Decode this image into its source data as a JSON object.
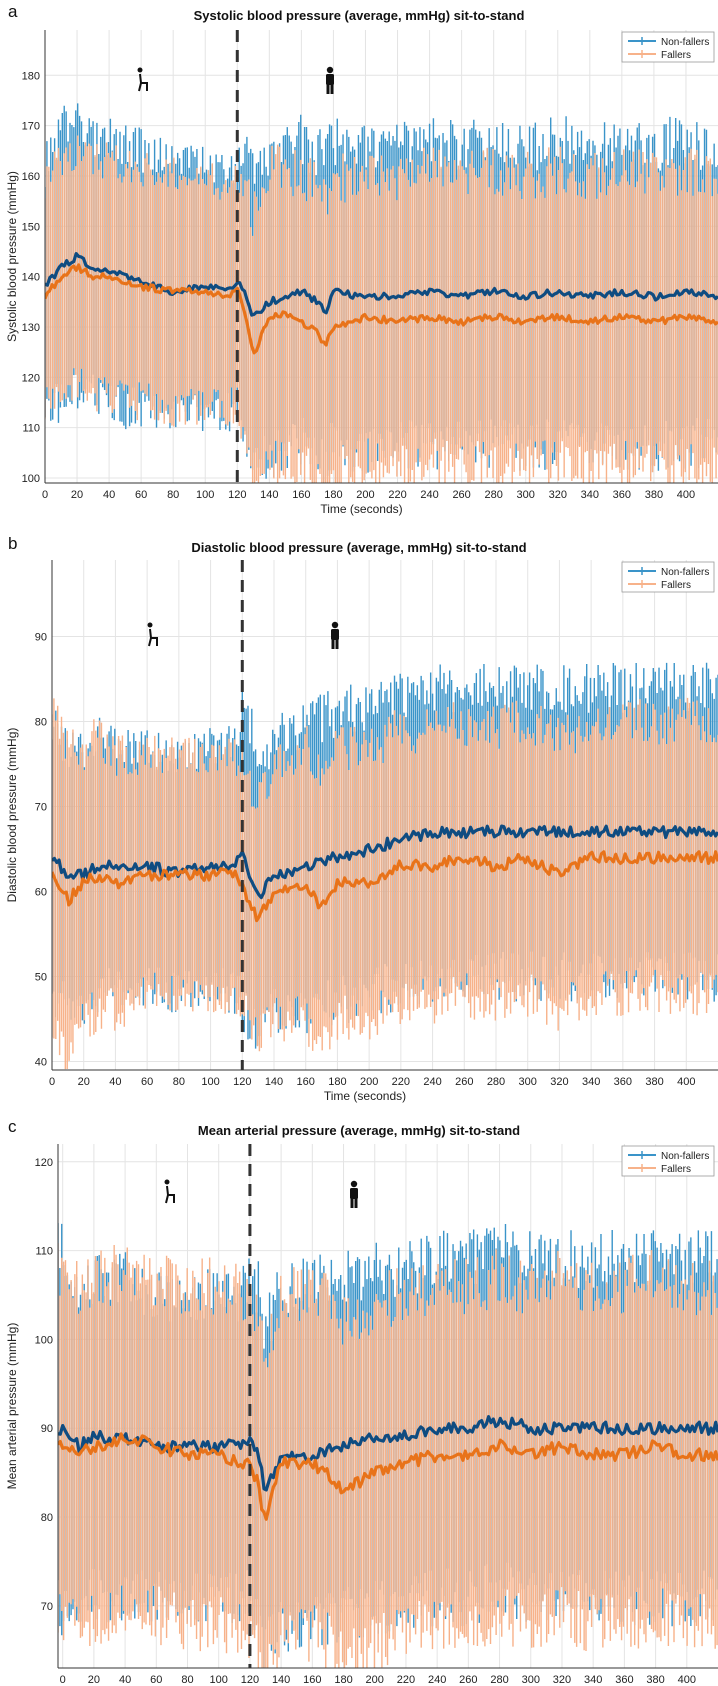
{
  "panels": [
    {
      "letter": "a",
      "chart_data": {
        "type": "line",
        "title": "Systolic blood pressure (average, mmHg) sit-to-stand",
        "xlabel": "Time (seconds)",
        "ylabel": "Systolic blood pressure (mmHg)",
        "xlim": [
          0,
          420
        ],
        "ylim": [
          99,
          189
        ],
        "xticks": [
          0,
          20,
          40,
          60,
          80,
          100,
          120,
          140,
          160,
          180,
          200,
          220,
          240,
          260,
          280,
          300,
          320,
          340,
          360,
          380,
          400
        ],
        "yticks": [
          100,
          110,
          120,
          130,
          140,
          150,
          160,
          170,
          180
        ],
        "grid": true,
        "legend_position": "top-right",
        "stand_time": 120,
        "series": [
          {
            "name": "Non-fallers",
            "color": "#0f4c81",
            "band_color": "#3a94c9",
            "x": [
              0,
              10,
              20,
              30,
              40,
              60,
              80,
              100,
              115,
              120,
              125,
              130,
              140,
              150,
              160,
              170,
              175,
              180,
              200,
              220,
              240,
              260,
              280,
              300,
              320,
              340,
              360,
              380,
              400,
              420
            ],
            "values": [
              138,
              142,
              144,
              142,
              141,
              139,
              137,
              138,
              137,
              139,
              137,
              132,
              135,
              136,
              137,
              135,
              133,
              137,
              136,
              136,
              137,
              136,
              137,
              136,
              137,
              136,
              137,
              136,
              137,
              136
            ],
            "sd": [
              24,
              27,
              27,
              26,
              26,
              26,
              25,
              25,
              24,
              23,
              28,
              28,
              30,
              30,
              30,
              30,
              30,
              30,
              30,
              30,
              30,
              30,
              30,
              30,
              30,
              30,
              30,
              30,
              30,
              29
            ]
          },
          {
            "name": "Fallers",
            "color": "#e8731a",
            "band_color": "#f7b28a",
            "x": [
              0,
              10,
              20,
              30,
              40,
              60,
              80,
              100,
              115,
              120,
              125,
              130,
              135,
              140,
              150,
              160,
              170,
              175,
              180,
              200,
              220,
              240,
              260,
              280,
              300,
              320,
              340,
              360,
              380,
              400,
              420
            ],
            "values": [
              136,
              140,
              142,
              140,
              140,
              138,
              137,
              137,
              136,
              137,
              133,
              124,
              128,
              132,
              133,
              131,
              129,
              126,
              130,
              132,
              131,
              132,
              131,
              132,
              131,
              132,
              131,
              132,
              131,
              132,
              131
            ],
            "sd": [
              22,
              23,
              23,
              23,
              23,
              23,
              23,
              23,
              22,
              22,
              25,
              28,
              28,
              29,
              29,
              29,
              29,
              29,
              29,
              29,
              29,
              29,
              29,
              29,
              29,
              29,
              29,
              29,
              29,
              29,
              29
            ]
          }
        ]
      }
    },
    {
      "letter": "b",
      "chart_data": {
        "type": "line",
        "title": "Diastolic blood pressure (average, mmHg) sit-to-stand",
        "xlabel": "Time (seconds)",
        "ylabel": "Diastolic blood pressure (mmHg)",
        "xlim": [
          0,
          420
        ],
        "ylim": [
          39,
          99
        ],
        "xticks": [
          0,
          20,
          40,
          60,
          80,
          100,
          120,
          140,
          160,
          180,
          200,
          220,
          240,
          260,
          280,
          300,
          320,
          340,
          360,
          380,
          400
        ],
        "yticks": [
          40,
          50,
          60,
          70,
          80,
          90
        ],
        "grid": true,
        "legend_position": "top-right",
        "stand_time": 120,
        "series": [
          {
            "name": "Non-fallers",
            "color": "#0f4c81",
            "band_color": "#3a94c9",
            "x": [
              0,
              10,
              20,
              30,
              40,
              60,
              80,
              100,
              115,
              120,
              125,
              130,
              140,
              160,
              180,
              200,
              220,
              240,
              260,
              280,
              300,
              320,
              340,
              360,
              380,
              400,
              420
            ],
            "values": [
              64,
              62,
              62,
              63,
              63,
              63,
              62,
              63,
              63,
              64,
              62,
              59,
              62,
              63,
              64,
              65,
              66,
              67,
              67,
              67,
              67,
              67,
              67,
              67,
              67,
              67,
              67
            ],
            "sd": [
              16,
              15,
              15,
              15,
              14,
              14,
              14,
              14,
              15,
              17,
              18,
              16,
              16,
              17,
              17,
              17,
              17,
              17,
              17,
              17,
              17,
              17,
              17,
              17,
              17,
              17,
              17
            ]
          },
          {
            "name": "Fallers",
            "color": "#e8731a",
            "band_color": "#f7b28a",
            "x": [
              0,
              10,
              20,
              30,
              40,
              60,
              80,
              100,
              115,
              120,
              125,
              130,
              140,
              160,
              170,
              180,
              200,
              220,
              240,
              260,
              280,
              300,
              320,
              340,
              360,
              380,
              400,
              420
            ],
            "values": [
              62,
              59,
              61,
              62,
              61,
              62,
              62,
              62,
              62,
              61,
              58,
              57,
              60,
              61,
              58,
              61,
              61,
              63,
              63,
              64,
              63,
              64,
              62,
              64,
              64,
              64,
              64,
              64
            ],
            "sd": [
              20,
              18,
              16,
              16,
              15,
              14,
              14,
              14,
              14,
              14,
              14,
              14,
              15,
              16,
              16,
              16,
              16,
              16,
              16,
              16,
              16,
              16,
              16,
              16,
              16,
              16,
              16,
              16
            ]
          }
        ]
      }
    },
    {
      "letter": "c",
      "chart_data": {
        "type": "line",
        "title": "Mean arterial pressure (average, mmHg) sit-to-stand",
        "xlabel": "Time (seconds)",
        "ylabel": "Mean arterial pressure (mmHg)",
        "xlim": [
          -3,
          420
        ],
        "ylim": [
          63,
          122
        ],
        "xticks": [
          0,
          20,
          40,
          60,
          80,
          100,
          120,
          140,
          160,
          180,
          200,
          220,
          240,
          260,
          280,
          300,
          320,
          340,
          360,
          380,
          400
        ],
        "yticks": [
          70,
          80,
          90,
          100,
          110,
          120
        ],
        "grid": true,
        "legend_position": "top-right",
        "stand_time": 120,
        "series": [
          {
            "name": "Non-fallers",
            "color": "#0f4c81",
            "band_color": "#3a94c9",
            "x": [
              0,
              10,
              20,
              30,
              40,
              60,
              80,
              100,
              115,
              120,
              125,
              130,
              140,
              160,
              180,
              200,
              220,
              240,
              260,
              280,
              300,
              320,
              340,
              360,
              380,
              400,
              420
            ],
            "values": [
              90,
              88,
              89,
              89,
              89,
              88,
              88,
              88,
              88,
              89,
              87,
              83,
              87,
              87,
              88,
              89,
              89,
              90,
              90,
              91,
              90,
              90,
              90,
              90,
              90,
              90,
              90
            ],
            "sd": [
              20,
              18,
              18,
              18,
              18,
              17,
              17,
              17,
              17,
              18,
              19,
              18,
              19,
              19,
              19,
              19,
              19,
              19,
              19,
              19,
              19,
              19,
              19,
              19,
              19,
              19,
              19
            ]
          },
          {
            "name": "Fallers",
            "color": "#e8731a",
            "band_color": "#f7b28a",
            "x": [
              0,
              10,
              20,
              30,
              40,
              60,
              80,
              100,
              115,
              120,
              125,
              130,
              135,
              140,
              160,
              170,
              180,
              200,
              220,
              240,
              260,
              280,
              300,
              320,
              340,
              360,
              380,
              400,
              420
            ],
            "values": [
              88,
              87,
              88,
              88,
              89,
              88,
              87,
              87,
              86,
              86,
              84,
              79,
              83,
              86,
              86,
              85,
              83,
              85,
              86,
              87,
              87,
              88,
              87,
              88,
              87,
              87,
              88,
              87,
              87
            ],
            "sd": [
              20,
              19,
              19,
              19,
              19,
              19,
              19,
              19,
              19,
              19,
              19,
              17,
              18,
              19,
              19,
              19,
              19,
              19,
              19,
              19,
              19,
              19,
              19,
              19,
              19,
              19,
              19,
              19,
              19
            ]
          }
        ]
      }
    }
  ]
}
